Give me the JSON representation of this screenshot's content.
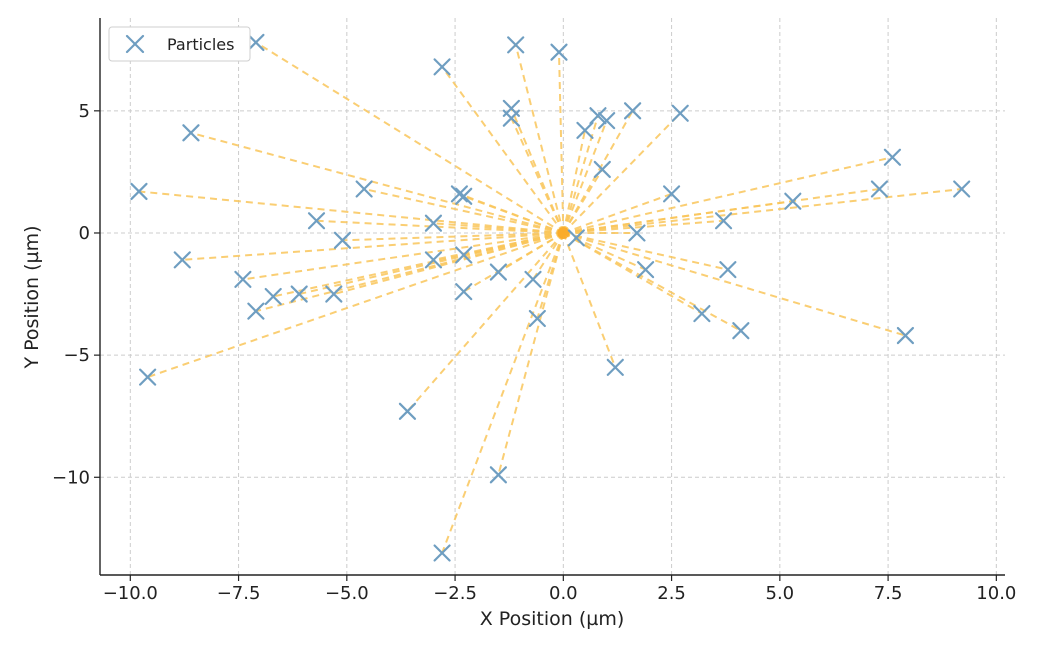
{
  "chart_data": {
    "type": "scatter",
    "title": "",
    "xlabel": "X Position (µm)",
    "ylabel": "Y Position (µm)",
    "xlim": [
      -10.7,
      10.2
    ],
    "ylim": [
      -14.0,
      8.8
    ],
    "x_ticks": [
      -10.0,
      -7.5,
      -5.0,
      -2.5,
      0.0,
      2.5,
      5.0,
      7.5,
      10.0
    ],
    "x_tick_labels": [
      "−10.0",
      "−7.5",
      "−5.0",
      "−2.5",
      "0.0",
      "2.5",
      "5.0",
      "7.5",
      "10.0"
    ],
    "y_ticks": [
      -10,
      -5,
      0,
      5
    ],
    "y_tick_labels": [
      "−10",
      "−5",
      "0",
      "5"
    ],
    "grid": true,
    "legend": {
      "placement": "top-left",
      "entries": [
        "Particles"
      ]
    },
    "colors": {
      "particles": "#6f9ec1",
      "connectors": "#f9c65a",
      "center": "#f9a826"
    },
    "center": [
      0.0,
      0.0
    ],
    "series": [
      {
        "name": "Particles",
        "marker": "x",
        "points": [
          [
            -7.1,
            7.8
          ],
          [
            -2.8,
            6.8
          ],
          [
            -1.1,
            7.7
          ],
          [
            -0.1,
            7.4
          ],
          [
            -1.2,
            5.1
          ],
          [
            -1.2,
            4.7
          ],
          [
            0.5,
            4.2
          ],
          [
            0.8,
            4.8
          ],
          [
            1.0,
            4.6
          ],
          [
            1.6,
            5.0
          ],
          [
            2.7,
            4.9
          ],
          [
            0.9,
            2.6
          ],
          [
            -8.6,
            4.1
          ],
          [
            -9.8,
            1.7
          ],
          [
            -4.6,
            1.8
          ],
          [
            -2.4,
            1.6
          ],
          [
            -2.3,
            1.5
          ],
          [
            2.5,
            1.6
          ],
          [
            7.6,
            3.1
          ],
          [
            7.3,
            1.8
          ],
          [
            9.2,
            1.8
          ],
          [
            5.3,
            1.3
          ],
          [
            3.7,
            0.5
          ],
          [
            1.7,
            0.0
          ],
          [
            -5.7,
            0.5
          ],
          [
            -3.0,
            0.4
          ],
          [
            -5.1,
            -0.3
          ],
          [
            0.3,
            -0.2
          ],
          [
            -8.8,
            -1.1
          ],
          [
            -3.0,
            -1.1
          ],
          [
            -2.3,
            -0.9
          ],
          [
            -1.5,
            -1.6
          ],
          [
            -0.7,
            -1.9
          ],
          [
            -7.4,
            -1.9
          ],
          [
            -6.7,
            -2.6
          ],
          [
            -6.1,
            -2.5
          ],
          [
            -5.3,
            -2.5
          ],
          [
            -7.1,
            -3.2
          ],
          [
            -2.3,
            -2.4
          ],
          [
            -0.6,
            -3.5
          ],
          [
            1.9,
            -1.5
          ],
          [
            3.8,
            -1.5
          ],
          [
            3.2,
            -3.3
          ],
          [
            4.1,
            -4.0
          ],
          [
            7.9,
            -4.2
          ],
          [
            -9.6,
            -5.9
          ],
          [
            1.2,
            -5.5
          ],
          [
            -3.6,
            -7.3
          ],
          [
            -1.5,
            -9.9
          ],
          [
            -2.8,
            -13.1
          ]
        ]
      }
    ]
  }
}
